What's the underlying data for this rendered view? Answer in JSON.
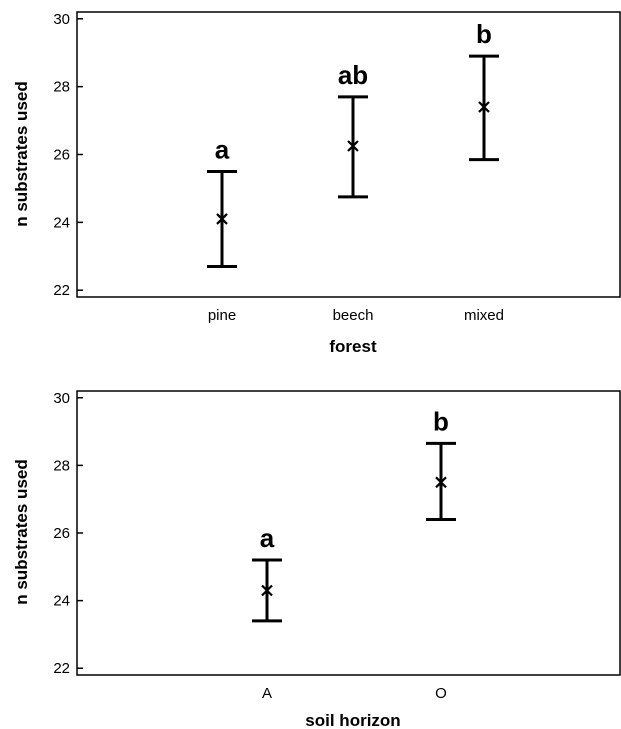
{
  "chart_data": [
    {
      "type": "scatter",
      "xlabel": "forest",
      "ylabel": "n substrates used",
      "ylim": [
        21.8,
        30.2
      ],
      "yticks": [
        22,
        24,
        26,
        28,
        30
      ],
      "categories": [
        "pine",
        "beech",
        "mixed"
      ],
      "points": [
        {
          "category": "pine",
          "mean": 24.1,
          "lower": 22.7,
          "upper": 25.5,
          "letter": "a"
        },
        {
          "category": "beech",
          "mean": 26.25,
          "lower": 24.75,
          "upper": 27.7,
          "letter": "ab"
        },
        {
          "category": "mixed",
          "mean": 27.4,
          "lower": 25.85,
          "upper": 28.9,
          "letter": "b"
        }
      ],
      "grid": false
    },
    {
      "type": "scatter",
      "xlabel": "soil horizon",
      "ylabel": "n substrates used",
      "ylim": [
        21.8,
        30.2
      ],
      "yticks": [
        22,
        24,
        26,
        28,
        30
      ],
      "categories": [
        "A",
        "O"
      ],
      "points": [
        {
          "category": "A",
          "mean": 24.3,
          "lower": 23.4,
          "upper": 25.2,
          "letter": "a"
        },
        {
          "category": "O",
          "mean": 27.5,
          "lower": 26.4,
          "upper": 28.65,
          "letter": "b"
        }
      ],
      "grid": false
    }
  ]
}
